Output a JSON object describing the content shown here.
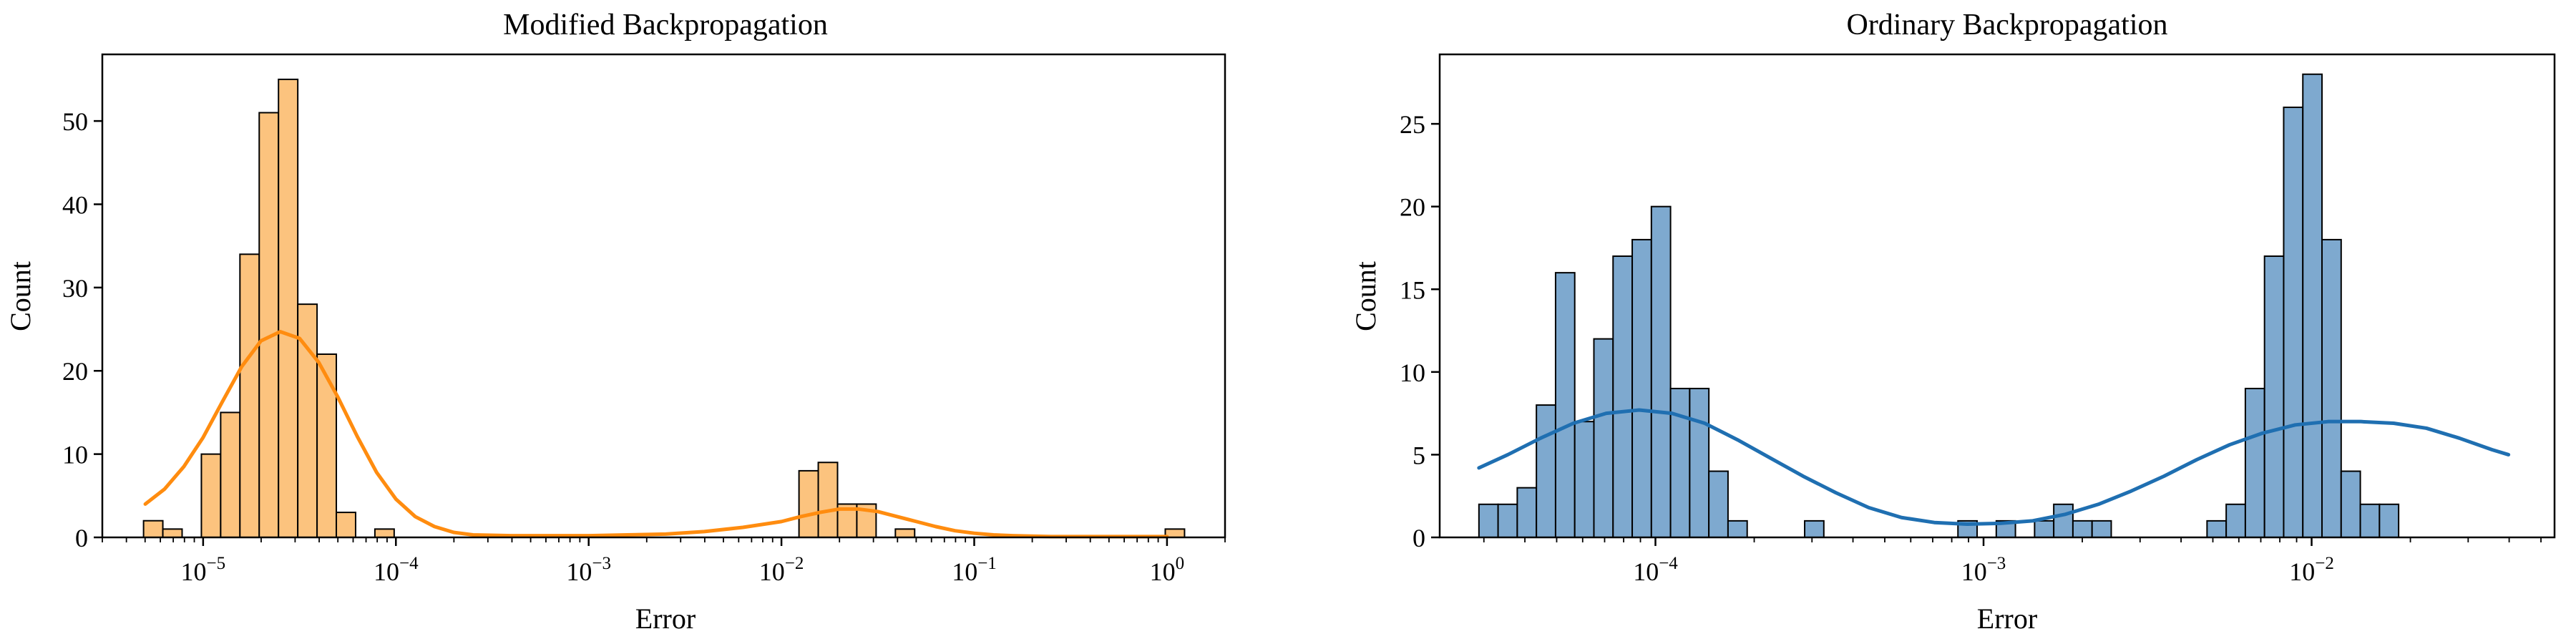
{
  "colors": {
    "left_fill": "#fcc37e",
    "left_curve": "#ff8c0f",
    "right_fill": "#7ea9cf",
    "right_curve": "#1f6fb1",
    "bar_edge": "#000000"
  },
  "chart_data": [
    {
      "type": "bar",
      "title": "Modified Backpropagation",
      "xlabel": "Error",
      "ylabel": "Count",
      "x_scale": "log",
      "xlim": [
        3e-06,
        2.0
      ],
      "ylim": [
        0,
        58
      ],
      "grid": false,
      "legend": "none",
      "x_ticks": [
        {
          "value": 1e-05,
          "base": "10",
          "exp": "−5"
        },
        {
          "value": 0.0001,
          "base": "10",
          "exp": "−4"
        },
        {
          "value": 0.001,
          "base": "10",
          "exp": "−3"
        },
        {
          "value": 0.01,
          "base": "10",
          "exp": "−2"
        },
        {
          "value": 0.1,
          "base": "10",
          "exp": "−1"
        },
        {
          "value": 1,
          "base": "10",
          "exp": "0"
        }
      ],
      "y_ticks": [
        "0",
        "10",
        "20",
        "30",
        "40",
        "50"
      ],
      "y_tick_values": [
        0,
        10,
        20,
        30,
        40,
        50
      ],
      "bins": {
        "log_start": -5.309,
        "log_width": 0.1,
        "counts": [
          2,
          1,
          0,
          10,
          15,
          34,
          51,
          55,
          28,
          22,
          3,
          0,
          1,
          0,
          0,
          0,
          0,
          0,
          0,
          0,
          0,
          0,
          0,
          0,
          0,
          0,
          0,
          0,
          0,
          0,
          0,
          0,
          0,
          0,
          8,
          9,
          4,
          4,
          0,
          1,
          0,
          0,
          0,
          0,
          0,
          0,
          0,
          0,
          0,
          0,
          0,
          0,
          0,
          1
        ]
      },
      "kde": {
        "log_x": [
          -5.3,
          -5.2,
          -5.1,
          -5.0,
          -4.9,
          -4.8,
          -4.7,
          -4.6,
          -4.5,
          -4.4,
          -4.3,
          -4.2,
          -4.1,
          -4.0,
          -3.9,
          -3.8,
          -3.7,
          -3.6,
          -3.4,
          -3.2,
          -3.0,
          -2.8,
          -2.6,
          -2.4,
          -2.2,
          -2.0,
          -1.9,
          -1.8,
          -1.7,
          -1.6,
          -1.5,
          -1.4,
          -1.3,
          -1.2,
          -1.1,
          -1.0,
          -0.9,
          -0.8,
          -0.6,
          -0.4,
          -0.2,
          0.0
        ],
        "y": [
          4.0,
          5.8,
          8.5,
          12.0,
          16.3,
          20.5,
          23.6,
          24.7,
          23.9,
          21.0,
          16.8,
          12.1,
          7.8,
          4.6,
          2.5,
          1.3,
          0.6,
          0.3,
          0.2,
          0.2,
          0.2,
          0.3,
          0.4,
          0.7,
          1.2,
          1.9,
          2.5,
          3.0,
          3.4,
          3.4,
          3.1,
          2.5,
          1.9,
          1.3,
          0.8,
          0.5,
          0.3,
          0.2,
          0.1,
          0.1,
          0.1,
          0.1
        ]
      }
    },
    {
      "type": "bar",
      "title": "Ordinary Backpropagation",
      "xlabel": "Error",
      "ylabel": "Count",
      "x_scale": "log",
      "xlim": [
        2.2e-05,
        0.055
      ],
      "ylim": [
        0,
        29.2
      ],
      "grid": false,
      "legend": "none",
      "x_ticks": [
        {
          "value": 0.0001,
          "base": "10",
          "exp": "−4"
        },
        {
          "value": 0.001,
          "base": "10",
          "exp": "−3"
        },
        {
          "value": 0.01,
          "base": "10",
          "exp": "−2"
        }
      ],
      "y_ticks": [
        "0",
        "5",
        "10",
        "15",
        "20",
        "25"
      ],
      "y_tick_values": [
        0,
        5,
        10,
        15,
        20,
        25
      ],
      "bins": {
        "log_start": -4.538,
        "log_width": 0.0584,
        "counts": [
          2,
          2,
          3,
          8,
          16,
          7,
          12,
          17,
          18,
          20,
          9,
          9,
          4,
          1,
          0,
          0,
          0,
          1,
          0,
          0,
          0,
          0,
          0,
          0,
          0,
          1,
          0,
          1,
          0,
          1,
          2,
          1,
          1,
          0,
          0,
          0,
          0,
          0,
          1,
          2,
          9,
          17,
          26,
          28,
          18,
          4,
          2,
          2
        ]
      },
      "kde": {
        "log_x": [
          -4.538,
          -4.45,
          -4.35,
          -4.25,
          -4.15,
          -4.05,
          -3.95,
          -3.85,
          -3.75,
          -3.65,
          -3.55,
          -3.45,
          -3.35,
          -3.25,
          -3.15,
          -3.05,
          -2.95,
          -2.85,
          -2.75,
          -2.65,
          -2.55,
          -2.45,
          -2.35,
          -2.25,
          -2.15,
          -2.05,
          -1.95,
          -1.85,
          -1.75,
          -1.65,
          -1.55,
          -1.45,
          -1.4
        ],
        "y": [
          4.2,
          5.0,
          6.0,
          6.9,
          7.5,
          7.7,
          7.5,
          6.9,
          5.9,
          4.8,
          3.7,
          2.7,
          1.8,
          1.2,
          0.9,
          0.8,
          0.85,
          1.0,
          1.4,
          2.0,
          2.8,
          3.7,
          4.7,
          5.6,
          6.3,
          6.8,
          7.0,
          7.0,
          6.9,
          6.6,
          6.0,
          5.3,
          5.0
        ]
      }
    }
  ]
}
